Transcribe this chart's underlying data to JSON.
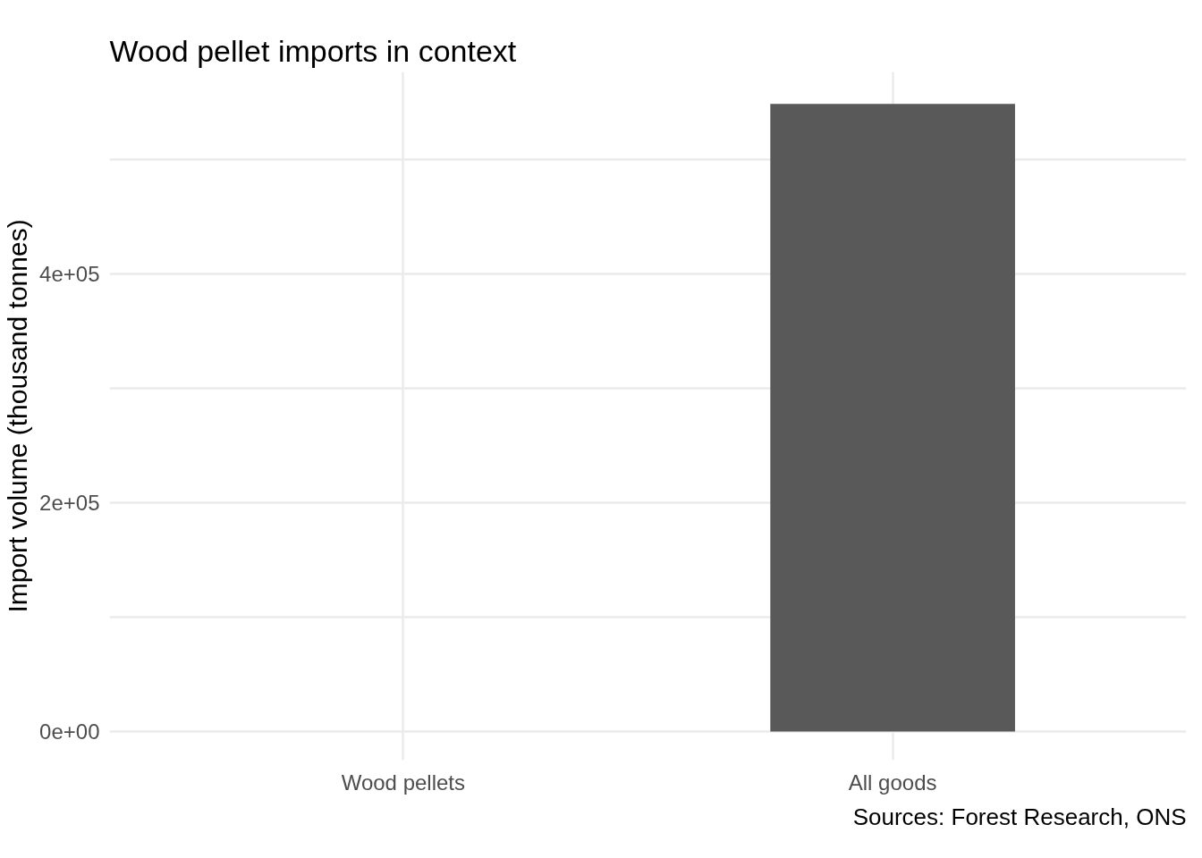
{
  "chart_data": {
    "type": "bar",
    "title": "Wood pellet imports in context",
    "ylabel": "Import volume (thousand tonnes)",
    "categories": [
      "Wood pellets",
      "All goods"
    ],
    "values": [
      0,
      549000
    ],
    "color": "#595959",
    "ylim": [
      -25000,
      577000
    ],
    "yticks": [
      {
        "value": 0,
        "label": "0e+00"
      },
      {
        "value": 100000,
        "label": null
      },
      {
        "value": 200000,
        "label": "2e+05"
      },
      {
        "value": 300000,
        "label": null
      },
      {
        "value": 400000,
        "label": "4e+05"
      },
      {
        "value": 500000,
        "label": null
      }
    ],
    "grid": true,
    "annotations": [
      "Sources: Forest Research, ONS"
    ]
  }
}
